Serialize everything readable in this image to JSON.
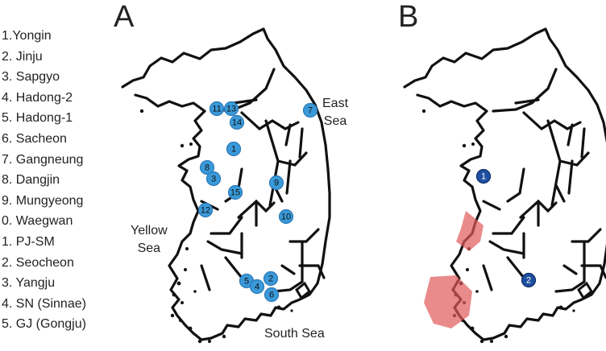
{
  "legend": [
    "1.Yongin",
    "2. Jinju",
    "3. Sapgyo",
    "4. Hadong-2",
    "5. Hadong-1",
    "6. Sacheon",
    "7. Gangneung",
    "8. Dangjin",
    "9. Mungyeong",
    "0. Waegwan",
    "1. PJ-SM",
    "2. Seocheon",
    "3. Yangju",
    "4. SN (Sinnae)",
    "5. GJ (Gongju)"
  ],
  "panels": {
    "a": "A",
    "b": "B"
  },
  "seas": {
    "east": [
      "East",
      "Sea"
    ],
    "yellow": [
      "Yellow",
      "Sea"
    ],
    "south": "South Sea"
  },
  "sites_a": [
    {
      "id": "11",
      "label": "11"
    },
    {
      "id": "13",
      "label": "13"
    },
    {
      "id": "14",
      "label": "14"
    },
    {
      "id": "1",
      "label": "1"
    },
    {
      "id": "8",
      "label": "8"
    },
    {
      "id": "3",
      "label": "3"
    },
    {
      "id": "15",
      "label": "15"
    },
    {
      "id": "9",
      "label": "9"
    },
    {
      "id": "12",
      "label": "12"
    },
    {
      "id": "10",
      "label": "10"
    },
    {
      "id": "7",
      "label": "7"
    },
    {
      "id": "5",
      "label": "5"
    },
    {
      "id": "4",
      "label": "4"
    },
    {
      "id": "2",
      "label": "2"
    },
    {
      "id": "6",
      "label": "6"
    }
  ],
  "sites_b": [
    {
      "label": "1"
    },
    {
      "label": "2"
    }
  ],
  "colors": {
    "site_marker": "#3a9ad9",
    "site_marker_b": "#1f4fa0",
    "region_highlight": "#e05a5a",
    "coastline": "#111111"
  }
}
